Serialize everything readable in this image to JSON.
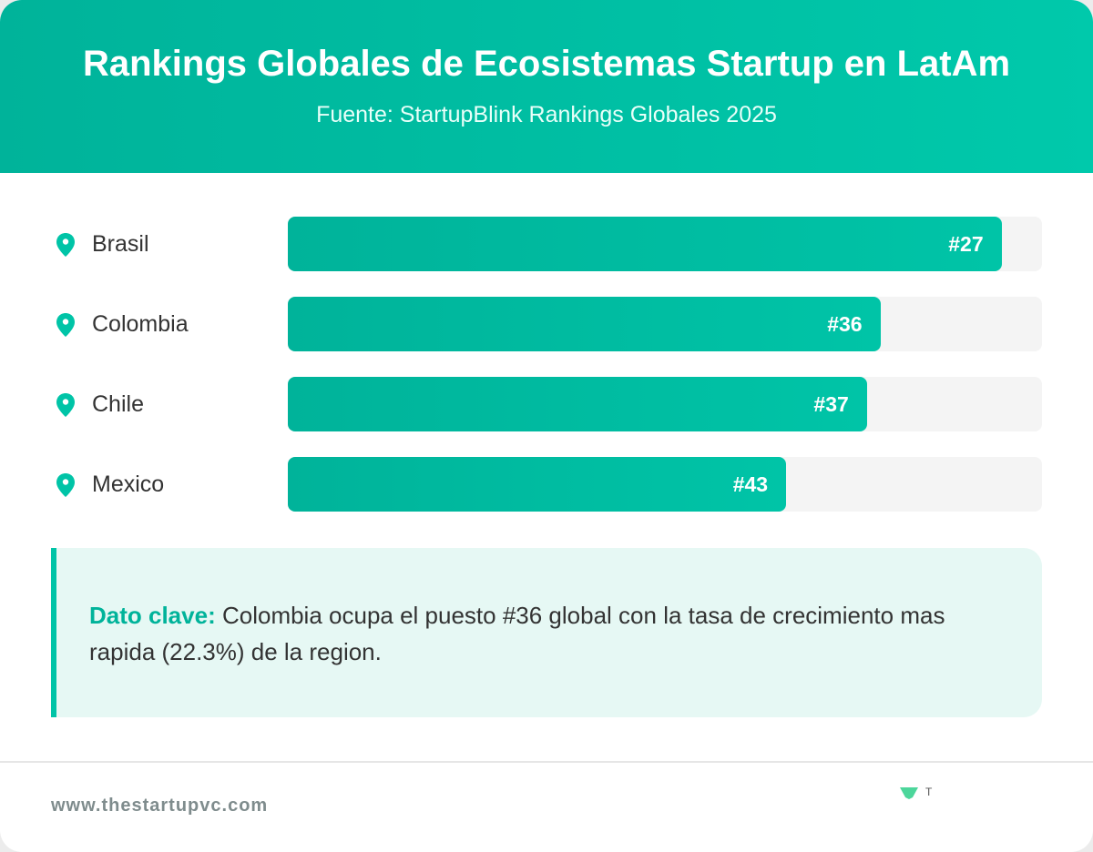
{
  "chart_data": {
    "type": "bar",
    "orientation": "horizontal",
    "title": "Rankings Globales de Ecosistemas Startup en LatAm",
    "subtitle": "Fuente: StartupBlink Rankings Globales 2025",
    "categories": [
      "Brasil",
      "Colombia",
      "Chile",
      "Mexico"
    ],
    "values": [
      27,
      36,
      37,
      43
    ],
    "value_labels": [
      "#27",
      "#36",
      "#37",
      "#43"
    ],
    "xlim": [
      80,
      24
    ],
    "color": "#00c4a7"
  },
  "callout": {
    "label": "Dato clave:",
    "text": "Colombia ocupa el puesto #36 global con la tasa de crecimiento mas rapida (22.3%) de la region."
  },
  "footer": {
    "url": "www.thestartupvc.com",
    "logo_text": "T"
  }
}
